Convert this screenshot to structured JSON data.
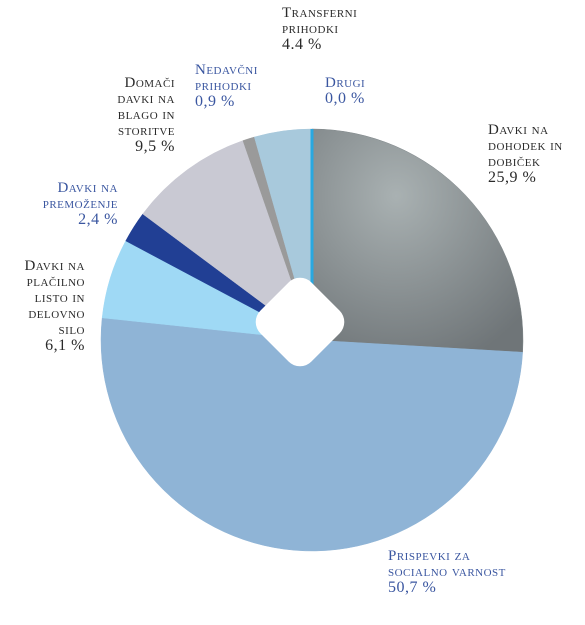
{
  "chart_data": {
    "type": "pie",
    "categories": [
      "Drugi",
      "Davki na dohodek in dobiček",
      "Prispevki za socialno varnost",
      "Davki na plačilno listo in delovno silo",
      "Davki na premoženje",
      "Domači davki na blago in storitve",
      "Nedavčni prihodki",
      "Transferni prihodki"
    ],
    "values": [
      0.0,
      25.9,
      50.7,
      6.1,
      2.4,
      9.5,
      0.9,
      4.4
    ],
    "value_labels": [
      "0,0 %",
      "25,9 %",
      "50,7 %",
      "6,1 %",
      "2,4 %",
      "9,5 %",
      "0,9 %",
      "4.4 %"
    ],
    "colors": [
      "#29a8e0",
      "#7f878a",
      "#8fb4d6",
      "#9fd9f5",
      "#213f94",
      "#c9c9d3",
      "#9a9a9a",
      "#a8c9dc"
    ],
    "label_colors": [
      "#3a56a0",
      "#2a2a2a",
      "#3a56a0",
      "#2a2a2a",
      "#3a56a0",
      "#2a2a2a",
      "#3a56a0",
      "#2a2a2a"
    ]
  }
}
